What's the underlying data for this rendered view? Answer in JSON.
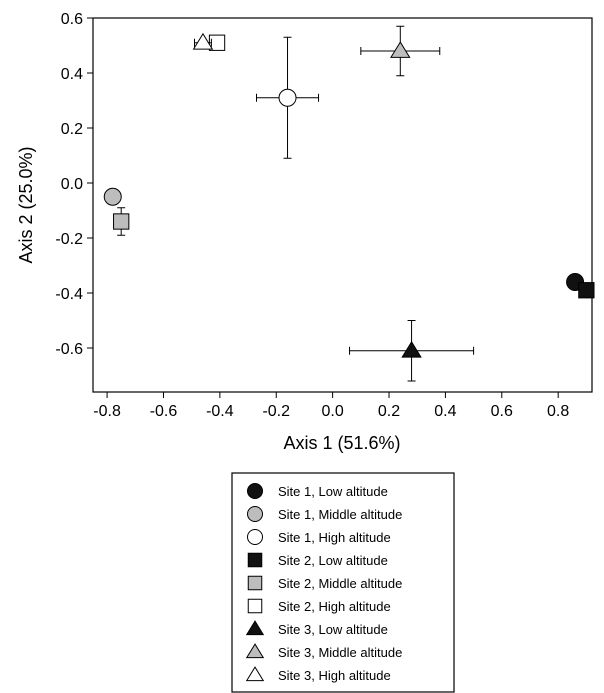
{
  "chart_data": {
    "type": "scatter",
    "xlabel": "Axis 1 (51.6%)",
    "ylabel": "Axis 2 (25.0%)",
    "xlim": [
      -0.85,
      0.92
    ],
    "ylim": [
      -0.76,
      0.6
    ],
    "xticks": [
      "-0.8",
      "-0.6",
      "-0.4",
      "-0.2",
      "0.0",
      "0.2",
      "0.4",
      "0.6",
      "0.8"
    ],
    "yticks": [
      "-0.6",
      "-0.4",
      "-0.2",
      "0.0",
      "0.2",
      "0.4",
      "0.6"
    ],
    "grid": false,
    "legend_position": "below",
    "colors": {
      "black": "#111111",
      "gray": "#bdbdbd",
      "white": "#ffffff"
    },
    "series": [
      {
        "name": "Site 1, Low altitude",
        "marker": "circle",
        "fill": "black",
        "x": 0.86,
        "y": -0.36,
        "xerr": 0,
        "yerr": 0
      },
      {
        "name": "Site 1, Middle altitude",
        "marker": "circle",
        "fill": "gray",
        "x": -0.78,
        "y": -0.05,
        "xerr": 0,
        "yerr": 0
      },
      {
        "name": "Site 1, High altitude",
        "marker": "circle",
        "fill": "white",
        "x": -0.16,
        "y": 0.31,
        "xerr": 0.11,
        "yerr": 0.22
      },
      {
        "name": "Site 2, Low altitude",
        "marker": "square",
        "fill": "black",
        "x": 0.9,
        "y": -0.39,
        "xerr": 0,
        "yerr": 0
      },
      {
        "name": "Site 2, Middle altitude",
        "marker": "square",
        "fill": "gray",
        "x": -0.75,
        "y": -0.14,
        "xerr": 0,
        "yerr": 0.05
      },
      {
        "name": "Site 2, High altitude",
        "marker": "square",
        "fill": "white",
        "x": -0.41,
        "y": 0.51,
        "xerr": 0.02,
        "yerr": 0
      },
      {
        "name": "Site 3, Low altitude",
        "marker": "triangle",
        "fill": "black",
        "x": 0.28,
        "y": -0.61,
        "xerr": 0.22,
        "yerr": 0.11
      },
      {
        "name": "Site 3, Middle altitude",
        "marker": "triangle",
        "fill": "gray",
        "x": 0.24,
        "y": 0.48,
        "xerr": 0.14,
        "yerr": 0.09
      },
      {
        "name": "Site 3, High altitude",
        "marker": "triangle",
        "fill": "white",
        "x": -0.46,
        "y": 0.51,
        "xerr": 0.03,
        "yerr": 0
      }
    ]
  }
}
